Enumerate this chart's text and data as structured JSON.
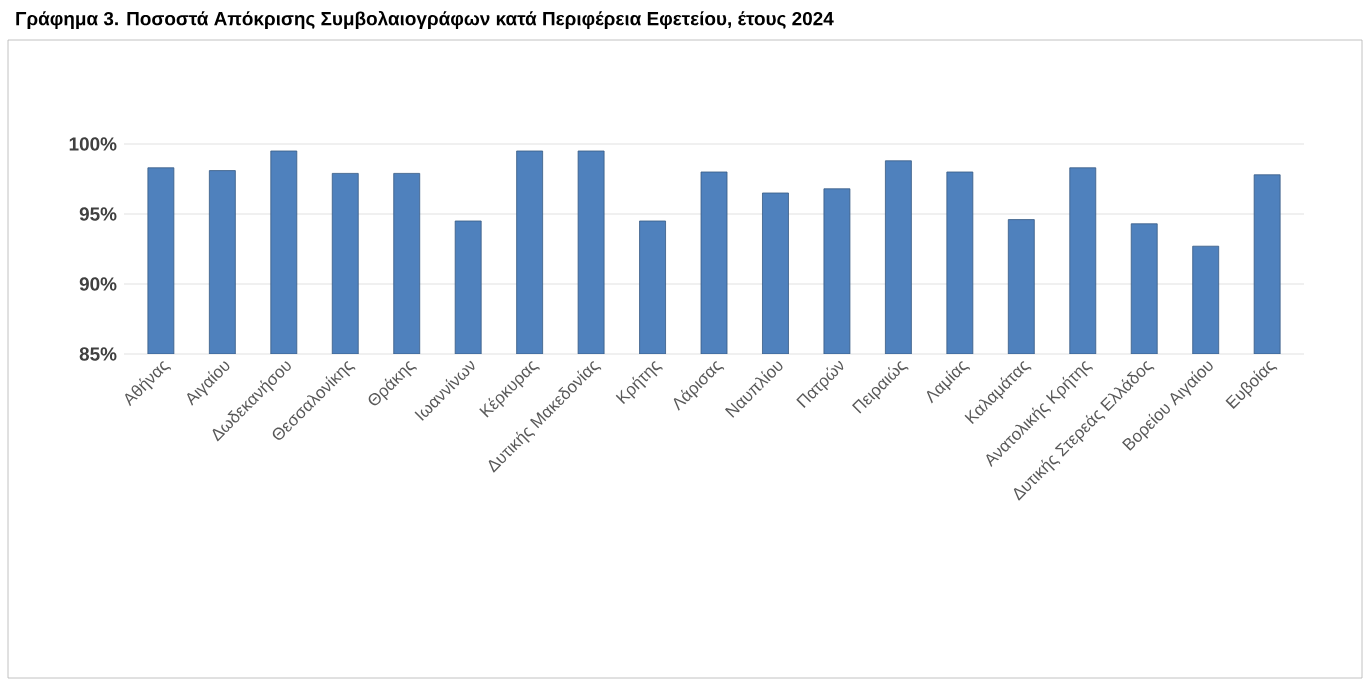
{
  "chart_data": {
    "type": "bar",
    "title": "Γράφημα 3. Ποσοστά Απόκρισης Συμβολαιογράφων  κατά Περιφέρεια Εφετείου, έτους 2024",
    "categories": [
      "Αθήνας",
      "Αιγαίου",
      "Δωδεκανήσου",
      "Θεσσαλονίκης",
      "Θράκης",
      "Ιωαννίνων",
      "Κέρκυρας",
      "Δυτικής Μακεδονίας",
      "Κρήτης",
      "Λάρισας",
      "Ναυπλίου",
      "Πατρών",
      "Πειραιώς",
      "Λαμίας",
      "Καλαμάτας",
      "Ανατολικής Κρήτης",
      "Δυτικής Στερεάς Ελλάδος",
      "Βορείου Αιγαίου",
      "Ευβοίας"
    ],
    "values": [
      98.3,
      98.1,
      99.5,
      97.9,
      97.9,
      94.5,
      99.5,
      99.5,
      94.5,
      98.0,
      96.5,
      96.8,
      98.8,
      98.0,
      94.6,
      98.3,
      94.3,
      92.7,
      97.8
    ],
    "color": "#4f81bd",
    "ylim": [
      85,
      100
    ],
    "yticks": [
      {
        "value": 85,
        "label": "85%"
      },
      {
        "value": 90,
        "label": "90%"
      },
      {
        "value": 95,
        "label": "95%"
      },
      {
        "value": 100,
        "label": "100%"
      }
    ],
    "grid": "y"
  }
}
